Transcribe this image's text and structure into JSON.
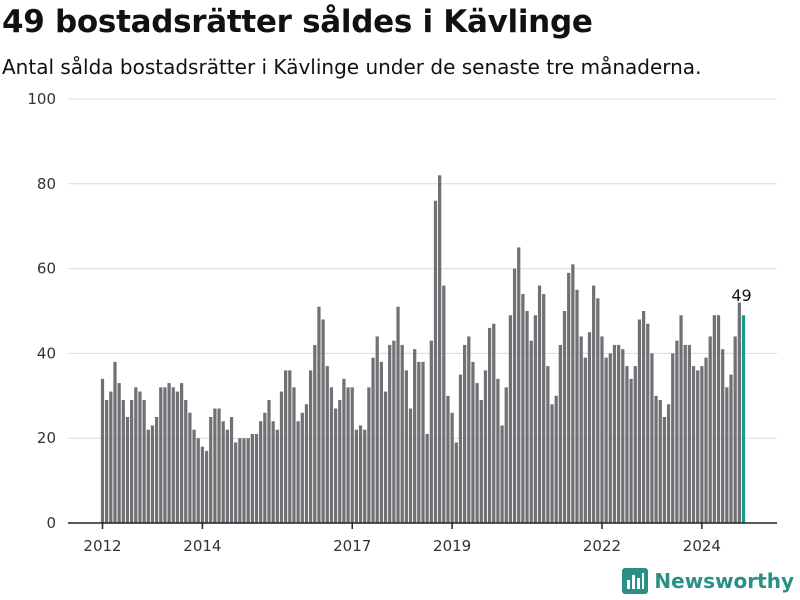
{
  "header": {
    "title": "49 bostadsrätter såldes i Kävlinge",
    "subtitle": "Antal sålda bostadsrätter i Kävlinge under de senaste tre månaderna."
  },
  "brand": {
    "name": "Newsworthy",
    "color": "#2a8f85",
    "icon": "bar-chart-logo-icon"
  },
  "colors": {
    "bar": "#717075",
    "highlight": "#1a9a8c"
  },
  "chart_data": {
    "type": "bar",
    "title": "49 bostadsrätter såldes i Kävlinge",
    "subtitle": "Antal sålda bostadsrätter i Kävlinge under de senaste tre månaderna.",
    "xlabel": "",
    "ylabel": "",
    "ylim": [
      0,
      100
    ],
    "yticks": [
      0,
      20,
      40,
      60,
      80,
      100
    ],
    "xtick_labels": [
      "2012",
      "2014",
      "2017",
      "2019",
      "2022",
      "2024"
    ],
    "grid": true,
    "x_start": "2012-01",
    "x_end": "2024-11",
    "frequency": "monthly",
    "values": [
      34,
      29,
      31,
      38,
      33,
      29,
      25,
      29,
      32,
      31,
      29,
      22,
      23,
      25,
      32,
      32,
      33,
      32,
      31,
      33,
      29,
      26,
      22,
      20,
      18,
      17,
      25,
      27,
      27,
      24,
      22,
      25,
      19,
      20,
      20,
      20,
      21,
      21,
      24,
      26,
      29,
      24,
      22,
      31,
      36,
      36,
      32,
      24,
      26,
      28,
      36,
      42,
      51,
      48,
      37,
      32,
      27,
      29,
      34,
      32,
      32,
      22,
      23,
      22,
      32,
      39,
      44,
      38,
      31,
      42,
      43,
      51,
      42,
      36,
      27,
      41,
      38,
      38,
      21,
      43,
      76,
      82,
      56,
      30,
      26,
      19,
      35,
      42,
      44,
      38,
      33,
      29,
      36,
      46,
      47,
      34,
      23,
      32,
      49,
      60,
      65,
      54,
      50,
      43,
      49,
      56,
      54,
      37,
      28,
      30,
      42,
      50,
      59,
      61,
      55,
      44,
      39,
      45,
      56,
      53,
      44,
      39,
      40,
      42,
      42,
      41,
      37,
      34,
      37,
      48,
      50,
      47,
      40,
      30,
      29,
      25,
      28,
      40,
      43,
      49,
      42,
      42,
      37,
      36,
      37,
      39,
      44,
      49,
      49,
      41,
      32,
      35,
      44,
      52,
      49
    ],
    "highlight_last": true,
    "data_labels": [
      {
        "index": 154,
        "text": "49"
      }
    ]
  }
}
